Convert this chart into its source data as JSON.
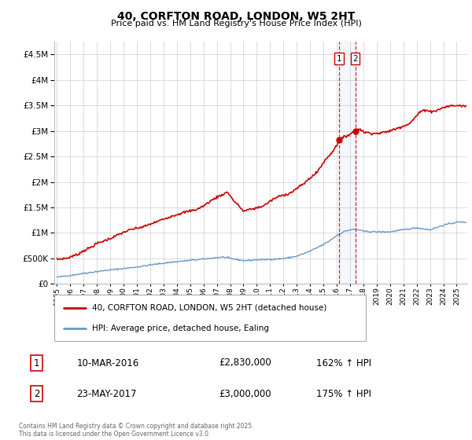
{
  "title": "40, CORFTON ROAD, LONDON, W5 2HT",
  "subtitle": "Price paid vs. HM Land Registry's House Price Index (HPI)",
  "ylim": [
    0,
    4750000
  ],
  "yticks": [
    0,
    500000,
    1000000,
    1500000,
    2000000,
    2500000,
    3000000,
    3500000,
    4000000,
    4500000
  ],
  "xtick_years": [
    1995,
    1996,
    1997,
    1998,
    1999,
    2000,
    2001,
    2002,
    2003,
    2004,
    2005,
    2006,
    2007,
    2008,
    2009,
    2010,
    2011,
    2012,
    2013,
    2014,
    2015,
    2016,
    2017,
    2018,
    2019,
    2020,
    2021,
    2022,
    2023,
    2024,
    2025
  ],
  "red_color": "#cc0000",
  "blue_color": "#6699cc",
  "vline1_x": 2016.19,
  "vline2_x": 2017.39,
  "marker1_x": 2016.19,
  "marker1_y": 2830000,
  "marker2_x": 2017.39,
  "marker2_y": 3000000,
  "legend_address": "40, CORFTON ROAD, LONDON, W5 2HT (detached house)",
  "legend_hpi": "HPI: Average price, detached house, Ealing",
  "table_row1": [
    "1",
    "10-MAR-2016",
    "£2,830,000",
    "162% ↑ HPI"
  ],
  "table_row2": [
    "2",
    "23-MAY-2017",
    "£3,000,000",
    "175% ↑ HPI"
  ],
  "footer": "Contains HM Land Registry data © Crown copyright and database right 2025.\nThis data is licensed under the Open Government Licence v3.0.",
  "background_color": "#ffffff",
  "grid_color": "#cccccc",
  "xlim_left": 1994.8,
  "xlim_right": 2025.8
}
